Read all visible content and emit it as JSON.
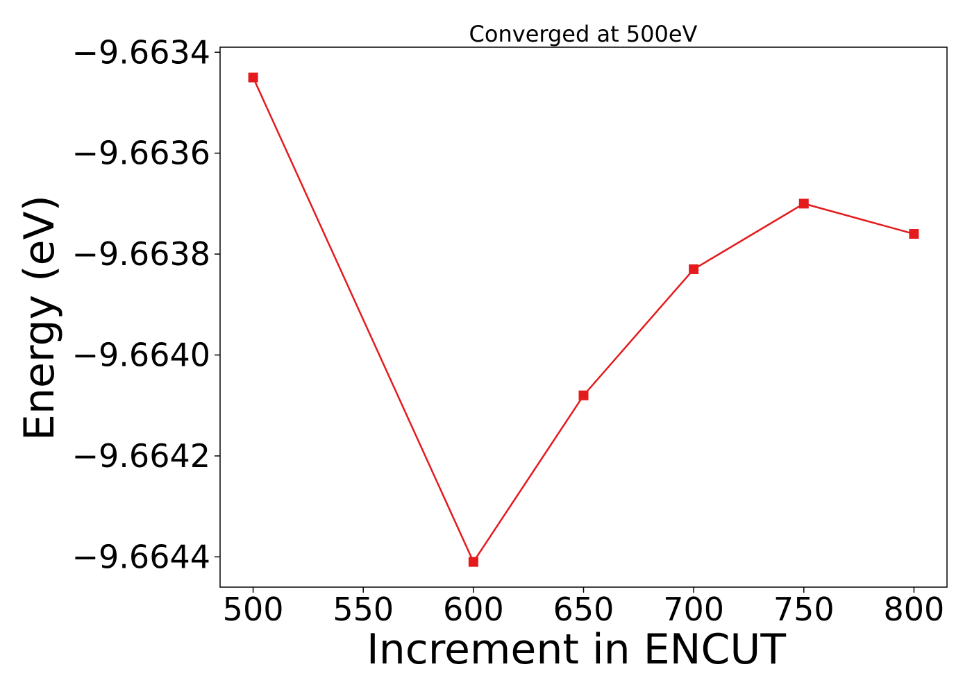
{
  "chart_data": {
    "type": "line",
    "title": "Converged at 500eV",
    "xlabel": "Increment in ENCUT",
    "ylabel": "Energy (eV)",
    "x": [
      500,
      600,
      650,
      700,
      750,
      800
    ],
    "series": [
      {
        "values": [
          -9.66345,
          -9.66441,
          -9.66408,
          -9.66383,
          -9.6637,
          -9.66376
        ],
        "color": "#e41a1c",
        "marker": "square"
      }
    ],
    "xlim": [
      485,
      815
    ],
    "ylim": [
      -9.66446,
      -9.66339
    ],
    "xticks": [
      500,
      550,
      600,
      650,
      700,
      750,
      800
    ],
    "xtick_labels": [
      "500",
      "550",
      "600",
      "650",
      "700",
      "750",
      "800"
    ],
    "yticks": [
      -9.6634,
      -9.6636,
      -9.6638,
      -9.664,
      -9.6642,
      -9.6644
    ],
    "ytick_labels": [
      "−9.6634",
      "−9.6636",
      "−9.6638",
      "−9.6640",
      "−9.6642",
      "−9.6644"
    ],
    "grid": false,
    "legend": "none"
  }
}
